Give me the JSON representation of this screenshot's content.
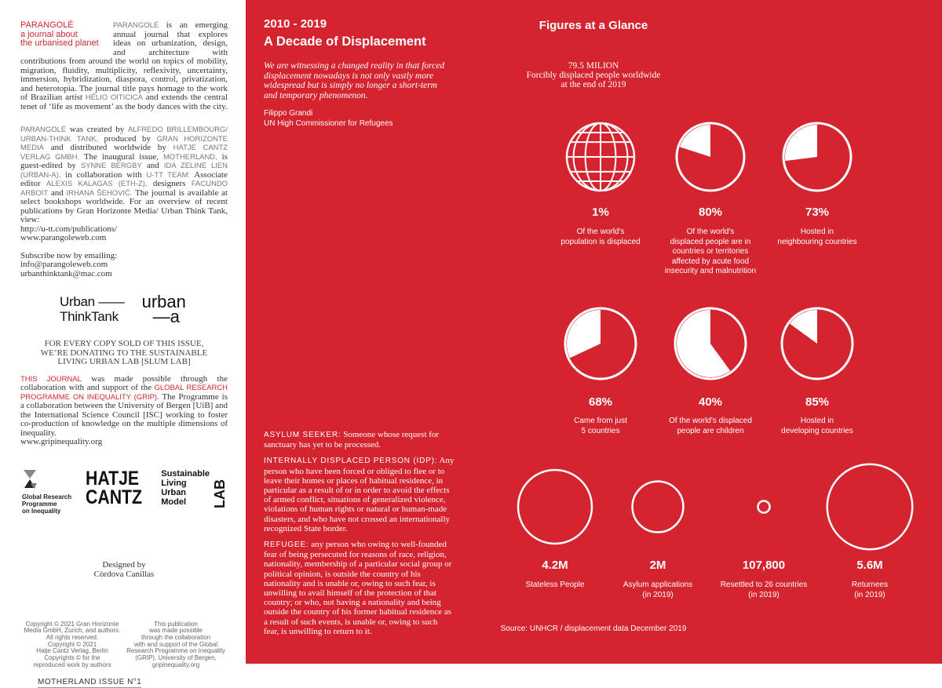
{
  "colors": {
    "brand_red": "#d3242f",
    "white": "#ffffff"
  },
  "left": {
    "title": [
      "PARANGOLÉ",
      "a journal about",
      "the urbanised planet"
    ],
    "intro": [
      {
        "t": "PARANGOLÉ",
        "s": "gray"
      },
      {
        "t": " is an emerging annual journal that explores ideas on urbanization, design, and architecture with contributions from around the world on topics of mobility, migration, fluidity, multiplicity, reflexivity, uncertainty, immersion, hybridization, diaspora, control, privatization, and heterotopia. The journal title pays homage to the work of Brazilian artist ",
        "s": ""
      },
      {
        "t": "HÉLIO OITICICA",
        "s": "gray"
      },
      {
        "t": " and extends the central tenet of ‘life as movement’ as the body dances with the city.",
        "s": ""
      }
    ],
    "credits": [
      {
        "t": "PARANGOLÉ",
        "s": "gray"
      },
      {
        "t": " was created by ",
        "s": ""
      },
      {
        "t": "ALFREDO BRILLEMBOURG/ URBAN-THINK TANK,",
        "s": "gray"
      },
      {
        "t": " produced by ",
        "s": ""
      },
      {
        "t": "GRAN HORIZONTE MEDIA",
        "s": "gray"
      },
      {
        "t": " and distributed worldwide by ",
        "s": ""
      },
      {
        "t": "HATJE CANTZ VERLAG GMBH.",
        "s": "gray"
      },
      {
        "t": " The inaugural issue, ",
        "s": ""
      },
      {
        "t": "MOTHERLAND,",
        "s": "gray"
      },
      {
        "t": " is guest-edited by ",
        "s": ""
      },
      {
        "t": "SYNNE BERGBY",
        "s": "gray"
      },
      {
        "t": " and ",
        "s": ""
      },
      {
        "t": "IDA ZELINE LIEN (URBAN-A),",
        "s": "gray"
      },
      {
        "t": " in collaboration with ",
        "s": ""
      },
      {
        "t": "U-TT TEAM:",
        "s": "gray"
      },
      {
        "t": " Associate editor ",
        "s": ""
      },
      {
        "t": "ALEXIS KALAGAS (ETH-Z),",
        "s": "gray"
      },
      {
        "t": " designers ",
        "s": ""
      },
      {
        "t": "FACUNDO ARBOIT",
        "s": "gray"
      },
      {
        "t": " and ",
        "s": ""
      },
      {
        "t": "IRHANA ŠEHOVIĆ.",
        "s": "gray"
      },
      {
        "t": " The journal is available at select bookshops worldwide. For an overview of recent publications by Gran Horizonte Media/ Urban Think Tank, view:",
        "s": ""
      }
    ],
    "links": [
      "http://u-tt.com/publications/",
      "www.parangoleweb.com"
    ],
    "subscribe": [
      "Subscribe now by emailing:",
      "info@parangoleweb.com",
      "urbanthinktank@mac.com"
    ],
    "logo_utt": [
      "Urban ——",
      "ThinkTank"
    ],
    "logo_urbana": [
      "urban",
      "—a"
    ],
    "donation": [
      "FOR EVERY COPY SOLD OF THIS ISSUE,",
      "WE’RE DONATING TO THE SUSTAINABLE",
      "LIVING URBAN LAB [SLUM LAB]"
    ],
    "grip_para": [
      {
        "t": "THIS JOURNAL",
        "s": "red"
      },
      {
        "t": " was made possible through the collaboration with and support of the ",
        "s": ""
      },
      {
        "t": "GLOBAL RESEARCH PROGRAMME ON INEQUALITY (GRIP).",
        "s": "red"
      },
      {
        "t": " The Programme is a collaboration between the University of Bergen [UiB] and the International Science Council [ISC] working to foster co-production of knowledge on the multiple dimensions of inequality.",
        "s": ""
      }
    ],
    "grip_url": "www.gripinequality.org",
    "logo_grip": [
      "Global Research",
      "Programme",
      "on Inequality"
    ],
    "logo_hatje": [
      "HATJE",
      "CANTZ"
    ],
    "logo_slum": [
      "Sustainable",
      "Living",
      "Urban",
      "Model",
      "LAB"
    ],
    "designed_by": [
      "Designed by",
      "Còrdova Canillas"
    ],
    "copyright": [
      "Copyright © 2021 Gran Horizonte",
      "Media GmbH, Zurich, and authors.",
      "All rights reserved.",
      "Copyright © 2021",
      "Hatje Cantz Verlag, Berlin",
      "Copyrights © for the",
      "reproduced work by authors"
    ],
    "publication_note": [
      "This publication",
      "was made possible",
      "through the collaboration",
      "with and support of the Global",
      "Research Programme on Inequality",
      "(GRIP), University of Bergen,",
      "gripinequality.org"
    ],
    "issue": "MOTHERLAND ISSUE N°1"
  },
  "right": {
    "years": "2010 - 2019",
    "title": "A Decade of Displacement",
    "quote": "We are witnessing a changed reality in that forced displacement nowadays is not only vastly more widespread but is simply no longer a short-term and temporary phenomenon.",
    "quote_author": "Filippo Grandi",
    "quote_role": "UN High Commissioner for Refugees",
    "definitions": [
      {
        "term": "ASYLUM SEEKER:",
        "text": " Someone whose request for sanctuary has yet to be processed."
      },
      {
        "term": "INTERNALLY DISPLACED PERSON (IDP):",
        "text": " Any person who have been forced or obliged to flee or to leave their homes or places of habitual residence, in particular as a result of or in order to avoid the effects of armed conflict, situations of generalized violence, violations of human rights or natural or human-made disasters, and who have not crossed an internationally recognized State border."
      },
      {
        "term": "REFUGEE:",
        "text": " any person who owing to well-founded fear of being persecuted for reasons of race, religion, nationality, membership of a particular social group or political opinion, is outside the country of his nationality and is unable or, owing to such fear, is unwilling to avail himself of the protection of that country; or who, not having a nationality and being outside the country of his former habitual residence as a result of such events, is unable or, owing to such fear, is unwilling to return to it."
      }
    ],
    "figures_title": "Figures at a Glance",
    "headline": [
      "79.5 MILION",
      "Forcibly displaced people worldwide",
      "at the end of 2019"
    ],
    "source": "Source: UNHCR / displacement data December 2019"
  },
  "chart_data": [
    {
      "type": "pie",
      "items": [
        {
          "label": "1%",
          "value": 1,
          "icon": "globe-icon",
          "caption": [
            "Of the world's",
            "population is displaced"
          ]
        },
        {
          "label": "80%",
          "value": 80,
          "caption": [
            "Of the world's",
            "displaced people are in",
            "countries or territories",
            "affected by acute food",
            "insecurity and malnutrition"
          ]
        },
        {
          "label": "73%",
          "value": 73,
          "caption": [
            "Hosted in",
            "neighbouring countries"
          ]
        },
        {
          "label": "68%",
          "value": 68,
          "caption": [
            "Came from just",
            "5 countries"
          ]
        },
        {
          "label": "40%",
          "value": 40,
          "caption": [
            "Of the world's displaced",
            "people are children"
          ]
        },
        {
          "label": "85%",
          "value": 85,
          "caption": [
            "Hosted in",
            "developing countries"
          ]
        }
      ]
    },
    {
      "type": "bubble",
      "items": [
        {
          "label": "4.2M",
          "value": 4200000,
          "caption": [
            "Stateless People"
          ]
        },
        {
          "label": "2M",
          "value": 2000000,
          "caption": [
            "Asylum applications",
            "(in 2019)"
          ]
        },
        {
          "label": "107,800",
          "value": 107800,
          "caption": [
            "Resettled to 26 countries",
            "(in 2019)"
          ]
        },
        {
          "label": "5.6M",
          "value": 5600000,
          "caption": [
            "Returnees",
            "(in 2019)"
          ]
        }
      ]
    }
  ]
}
